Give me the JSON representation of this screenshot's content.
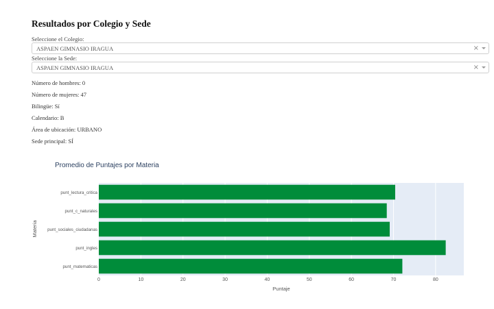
{
  "header": {
    "title": "Resultados por Colegio y Sede"
  },
  "colegio": {
    "label": "Seleccione el Colegio:",
    "value": "ASPAEN GIMNASIO IRAGUA"
  },
  "sede": {
    "label": "Seleccione la Sede:",
    "value": "ASPAEN GIMNASIO IRAGUA"
  },
  "icons": {
    "clear": "×",
    "dropdown": "chevron-down-icon"
  },
  "info": {
    "hombres": "Número de hombres: 0",
    "mujeres": "Número de mujeres: 47",
    "bilingue": "Bilingüe: Sí",
    "calendario": "Calendario: B",
    "area": "Área de ubicación: URBANO",
    "sede_principal": "Sede principal: SÍ"
  },
  "chart_data": {
    "type": "bar",
    "orientation": "horizontal",
    "title": "Promedio de Puntajes por Materia",
    "xlabel": "Puntaje",
    "ylabel": "Materia",
    "categories": [
      "punt_lectura_critica",
      "punt_c_naturales",
      "punt_sociales_ciudadanas",
      "punt_ingles",
      "punt_matematicas"
    ],
    "values": [
      70.4,
      68.4,
      69.1,
      82.4,
      72.1
    ],
    "xlim": [
      0,
      86.7
    ],
    "xticks": [
      0,
      10,
      20,
      30,
      40,
      50,
      60,
      70,
      80
    ],
    "grid": true,
    "colors": {
      "bar": "#008c3a",
      "plot_bg": "#e5ecf6",
      "grid": "#ffffff"
    }
  }
}
